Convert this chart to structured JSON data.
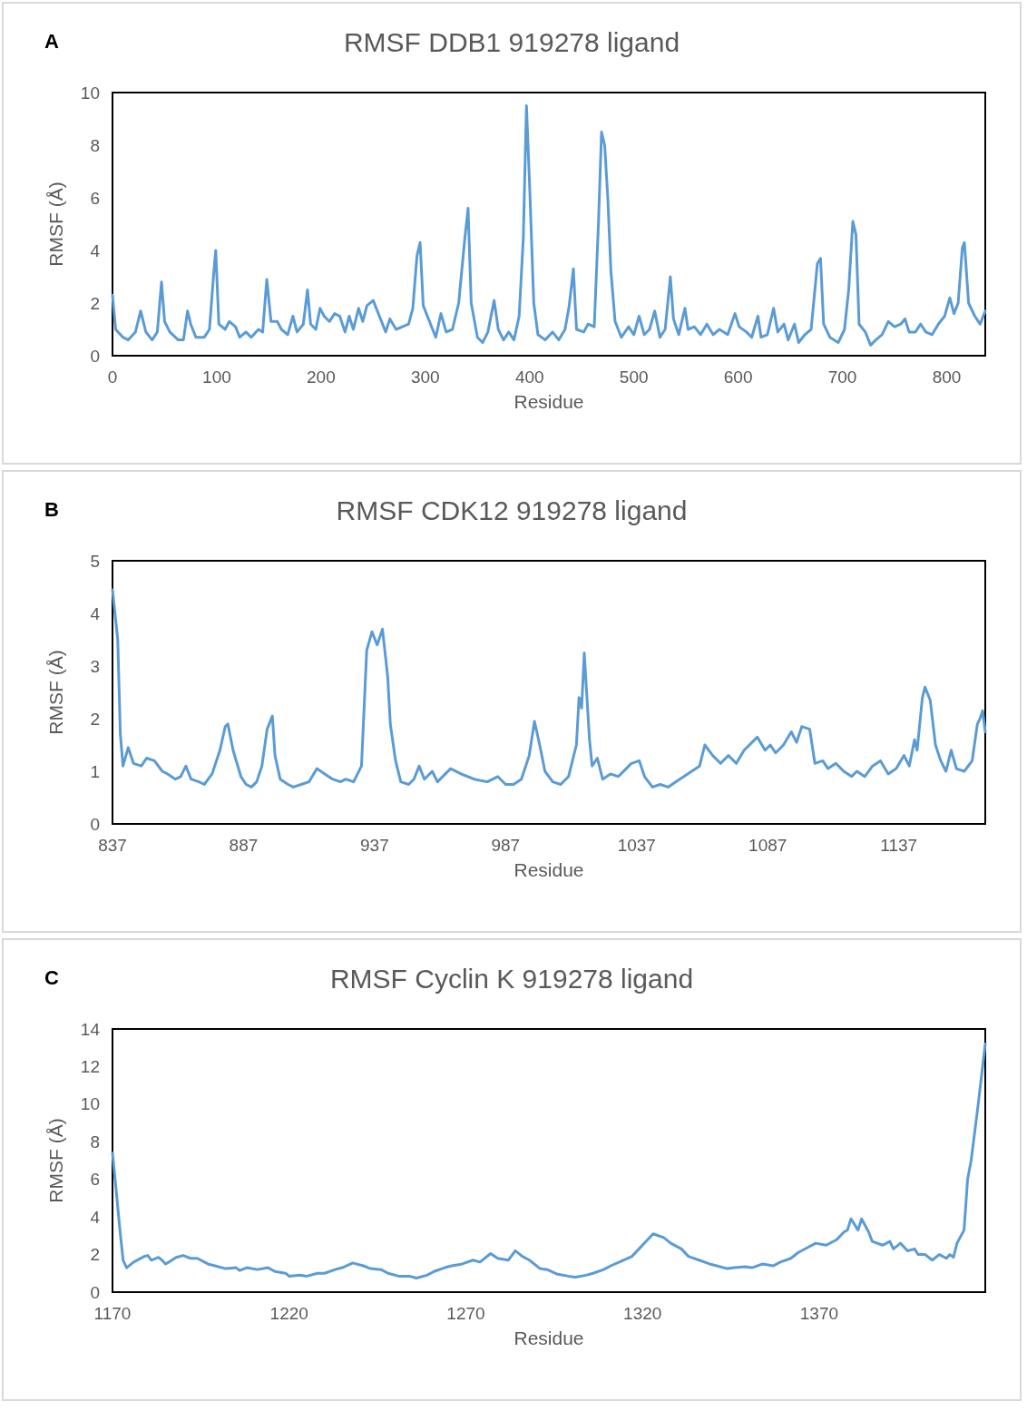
{
  "chart_data": [
    {
      "type": "line",
      "title": "RMSF DDB1 919278 ligand",
      "xlabel": "Residue",
      "ylabel": "RMSF (Å)",
      "annotations": [
        "A"
      ],
      "xlim": [
        0,
        837
      ],
      "xticks": [
        0,
        100,
        200,
        300,
        400,
        500,
        600,
        700,
        800
      ],
      "ylim": [
        0,
        10
      ],
      "yticks": [
        0,
        2,
        4,
        6,
        8,
        10
      ],
      "grid": false,
      "marker": "none",
      "line_style": "solid",
      "series": [
        {
          "color": "#5b9bd5",
          "x": [
            0,
            3,
            10,
            15,
            22,
            27,
            32,
            38,
            43,
            47,
            50,
            55,
            63,
            68,
            72,
            75,
            80,
            88,
            93,
            97,
            99,
            102,
            108,
            112,
            118,
            122,
            128,
            133,
            140,
            144,
            148,
            152,
            158,
            162,
            168,
            173,
            177,
            183,
            187,
            190,
            195,
            199,
            203,
            208,
            213,
            218,
            223,
            227,
            231,
            236,
            240,
            244,
            250,
            256,
            262,
            266,
            272,
            278,
            284,
            288,
            292,
            295,
            298,
            304,
            310,
            315,
            320,
            326,
            332,
            338,
            341,
            344,
            350,
            355,
            360,
            366,
            370,
            375,
            380,
            385,
            390,
            394,
            397,
            400,
            404,
            408,
            415,
            422,
            428,
            434,
            438,
            442,
            445,
            452,
            456,
            462,
            466,
            469,
            472,
            475,
            478,
            482,
            488,
            495,
            500,
            505,
            510,
            515,
            520,
            525,
            530,
            535,
            538,
            543,
            549,
            552,
            558,
            564,
            570,
            576,
            582,
            590,
            597,
            601,
            608,
            613,
            619,
            622,
            628,
            634,
            638,
            644,
            648,
            654,
            658,
            664,
            670,
            676,
            679,
            682,
            688,
            696,
            702,
            706,
            710,
            713,
            716,
            722,
            727,
            732,
            738,
            744,
            750,
            756,
            760,
            764,
            770,
            775,
            780,
            786,
            792,
            798,
            803,
            807,
            811,
            815,
            817,
            821,
            827,
            832,
            837
          ],
          "values": [
            2.3,
            1.0,
            0.7,
            0.6,
            0.9,
            1.7,
            0.9,
            0.6,
            0.9,
            2.8,
            1.3,
            0.9,
            0.6,
            0.6,
            1.7,
            1.2,
            0.7,
            0.7,
            1.0,
            3.1,
            4.0,
            1.2,
            1.0,
            1.3,
            1.1,
            0.7,
            0.9,
            0.7,
            1.0,
            0.9,
            2.9,
            1.3,
            1.3,
            1.0,
            0.8,
            1.5,
            0.9,
            1.2,
            2.5,
            1.2,
            1.0,
            1.8,
            1.5,
            1.3,
            1.6,
            1.5,
            0.9,
            1.5,
            1.0,
            1.8,
            1.3,
            1.9,
            2.1,
            1.5,
            0.9,
            1.4,
            1.0,
            1.1,
            1.2,
            1.8,
            3.8,
            4.3,
            1.9,
            1.3,
            0.7,
            1.6,
            0.9,
            1.0,
            2.0,
            4.5,
            5.6,
            2.0,
            0.7,
            0.5,
            0.9,
            2.1,
            1.0,
            0.6,
            0.9,
            0.6,
            1.5,
            4.5,
            9.5,
            6.5,
            2.0,
            0.8,
            0.6,
            0.9,
            0.6,
            1.0,
            1.9,
            3.3,
            1.0,
            0.9,
            1.2,
            1.1,
            5.0,
            8.5,
            8.0,
            6.0,
            3.2,
            1.3,
            0.7,
            1.1,
            0.8,
            1.5,
            0.8,
            1.0,
            1.7,
            0.7,
            1.0,
            3.0,
            1.4,
            0.8,
            1.8,
            1.0,
            1.1,
            0.8,
            1.2,
            0.8,
            1.0,
            0.8,
            1.6,
            1.1,
            0.9,
            0.7,
            1.5,
            0.7,
            0.8,
            1.8,
            0.9,
            1.2,
            0.6,
            1.2,
            0.5,
            0.8,
            1.0,
            3.5,
            3.7,
            1.2,
            0.7,
            0.5,
            1.0,
            2.5,
            5.1,
            4.6,
            1.2,
            0.9,
            0.4,
            0.6,
            0.8,
            1.3,
            1.1,
            1.2,
            1.4,
            0.9,
            0.9,
            1.2,
            0.9,
            0.8,
            1.2,
            1.5,
            2.2,
            1.6,
            2.0,
            4.1,
            4.3,
            2.0,
            1.5,
            1.2,
            1.7
          ]
        }
      ]
    },
    {
      "type": "line",
      "title": "RMSF CDK12 919278 ligand",
      "xlabel": "Residue",
      "ylabel": "RMSF (Å)",
      "annotations": [
        "B"
      ],
      "xlim": [
        837,
        1170
      ],
      "xticks": [
        837,
        887,
        937,
        987,
        1037,
        1087,
        1137
      ],
      "ylim": [
        0,
        5
      ],
      "yticks": [
        0,
        1,
        2,
        3,
        4,
        5
      ],
      "grid": false,
      "marker": "none",
      "line_style": "solid",
      "series": [
        {
          "color": "#5b9bd5",
          "x": [
            837,
            839,
            840,
            841,
            843,
            845,
            848,
            850,
            853,
            856,
            858,
            861,
            863,
            865,
            867,
            870,
            872,
            875,
            878,
            880,
            881,
            883,
            886,
            888,
            890,
            892,
            894,
            896,
            898,
            899,
            901,
            904,
            906,
            909,
            912,
            915,
            918,
            921,
            924,
            926,
            929,
            932,
            934,
            936,
            938,
            940,
            942,
            943,
            945,
            947,
            950,
            952,
            954,
            956,
            959,
            961,
            964,
            966,
            970,
            975,
            980,
            984,
            987,
            990,
            993,
            996,
            998,
            1000,
            1002,
            1005,
            1008,
            1011,
            1014,
            1015,
            1016,
            1017,
            1019,
            1020,
            1022,
            1024,
            1027,
            1030,
            1033,
            1035,
            1038,
            1040,
            1043,
            1046,
            1049,
            1052,
            1055,
            1058,
            1061,
            1063,
            1066,
            1069,
            1072,
            1075,
            1078,
            1081,
            1083,
            1086,
            1088,
            1090,
            1093,
            1096,
            1098,
            1100,
            1103,
            1105,
            1108,
            1110,
            1113,
            1116,
            1119,
            1121,
            1124,
            1127,
            1130,
            1133,
            1136,
            1139,
            1141,
            1143,
            1144,
            1146,
            1147,
            1149,
            1151,
            1153,
            1155,
            1157,
            1159,
            1162,
            1165,
            1167,
            1168,
            1169,
            1170
          ],
          "values": [
            4.45,
            3.5,
            1.7,
            1.1,
            1.45,
            1.15,
            1.1,
            1.25,
            1.2,
            1.0,
            0.95,
            0.85,
            0.9,
            1.1,
            0.85,
            0.8,
            0.75,
            0.95,
            1.4,
            1.85,
            1.9,
            1.4,
            0.9,
            0.75,
            0.7,
            0.8,
            1.1,
            1.8,
            2.05,
            1.3,
            0.85,
            0.75,
            0.7,
            0.75,
            0.8,
            1.05,
            0.95,
            0.85,
            0.8,
            0.85,
            0.8,
            1.1,
            3.3,
            3.65,
            3.4,
            3.7,
            2.8,
            1.9,
            1.2,
            0.8,
            0.75,
            0.85,
            1.1,
            0.85,
            1.0,
            0.8,
            0.95,
            1.05,
            0.95,
            0.85,
            0.8,
            0.9,
            0.75,
            0.75,
            0.85,
            1.3,
            1.95,
            1.5,
            1.0,
            0.8,
            0.75,
            0.9,
            1.5,
            2.4,
            2.2,
            3.25,
            1.6,
            1.1,
            1.25,
            0.85,
            0.95,
            0.9,
            1.05,
            1.15,
            1.2,
            0.9,
            0.7,
            0.75,
            0.7,
            0.8,
            0.9,
            1.0,
            1.1,
            1.5,
            1.3,
            1.15,
            1.3,
            1.15,
            1.4,
            1.55,
            1.65,
            1.4,
            1.5,
            1.35,
            1.5,
            1.75,
            1.55,
            1.85,
            1.8,
            1.15,
            1.2,
            1.05,
            1.15,
            1.0,
            0.9,
            1.0,
            0.9,
            1.1,
            1.2,
            0.95,
            1.05,
            1.3,
            1.1,
            1.6,
            1.4,
            2.4,
            2.6,
            2.35,
            1.5,
            1.2,
            1.0,
            1.4,
            1.05,
            1.0,
            1.2,
            1.9,
            2.0,
            2.15,
            1.75
          ]
        }
      ]
    },
    {
      "type": "line",
      "title": "RMSF Cyclin K 919278 ligand",
      "xlabel": "Residue",
      "ylabel": "RMSF (Å)",
      "annotations": [
        "C"
      ],
      "xlim": [
        1170,
        1417
      ],
      "xticks": [
        1170,
        1220,
        1270,
        1320,
        1370
      ],
      "ylim": [
        0,
        14
      ],
      "yticks": [
        0,
        2,
        4,
        6,
        8,
        10,
        12,
        14
      ],
      "grid": false,
      "marker": "none",
      "line_style": "solid",
      "series": [
        {
          "color": "#5b9bd5",
          "x": [
            1170,
            1171,
            1172,
            1173,
            1174,
            1176,
            1179,
            1180,
            1181,
            1183,
            1184,
            1185,
            1186,
            1188,
            1190,
            1192,
            1194,
            1197,
            1199,
            1202,
            1205,
            1206,
            1208,
            1211,
            1214,
            1216,
            1219,
            1220,
            1223,
            1225,
            1228,
            1230,
            1233,
            1235,
            1238,
            1241,
            1243,
            1246,
            1248,
            1251,
            1254,
            1256,
            1259,
            1261,
            1264,
            1266,
            1269,
            1272,
            1274,
            1277,
            1279,
            1282,
            1284,
            1286,
            1288,
            1291,
            1293,
            1296,
            1299,
            1301,
            1304,
            1306,
            1309,
            1311,
            1314,
            1317,
            1319,
            1321,
            1323,
            1326,
            1328,
            1331,
            1333,
            1336,
            1339,
            1341,
            1344,
            1346,
            1349,
            1351,
            1354,
            1357,
            1359,
            1362,
            1364,
            1367,
            1369,
            1372,
            1375,
            1377,
            1378,
            1379,
            1381,
            1382,
            1384,
            1385,
            1388,
            1390,
            1391,
            1393,
            1395,
            1397,
            1398,
            1400,
            1402,
            1404,
            1406,
            1407,
            1408,
            1409,
            1411,
            1412,
            1413,
            1415,
            1417
          ],
          "values": [
            7.4,
            5.5,
            3.5,
            1.7,
            1.3,
            1.6,
            1.9,
            1.95,
            1.7,
            1.85,
            1.7,
            1.5,
            1.6,
            1.85,
            1.95,
            1.8,
            1.8,
            1.5,
            1.4,
            1.25,
            1.3,
            1.15,
            1.3,
            1.2,
            1.3,
            1.1,
            1.0,
            0.85,
            0.9,
            0.85,
            1.0,
            1.0,
            1.2,
            1.3,
            1.55,
            1.4,
            1.25,
            1.2,
            1.0,
            0.85,
            0.85,
            0.75,
            0.9,
            1.1,
            1.3,
            1.4,
            1.5,
            1.7,
            1.6,
            2.05,
            1.8,
            1.7,
            2.2,
            1.9,
            1.7,
            1.25,
            1.2,
            0.95,
            0.85,
            0.8,
            0.9,
            1.0,
            1.2,
            1.4,
            1.65,
            1.9,
            2.3,
            2.7,
            3.1,
            2.9,
            2.6,
            2.3,
            1.9,
            1.7,
            1.5,
            1.4,
            1.25,
            1.3,
            1.35,
            1.3,
            1.5,
            1.4,
            1.6,
            1.8,
            2.1,
            2.4,
            2.6,
            2.5,
            2.8,
            3.2,
            3.3,
            3.9,
            3.3,
            3.9,
            3.2,
            2.7,
            2.5,
            2.7,
            2.3,
            2.6,
            2.2,
            2.3,
            2.0,
            2.0,
            1.7,
            2.0,
            1.8,
            2.0,
            1.85,
            2.6,
            3.3,
            6.0,
            7.0,
            10.0,
            13.2
          ]
        }
      ]
    }
  ]
}
